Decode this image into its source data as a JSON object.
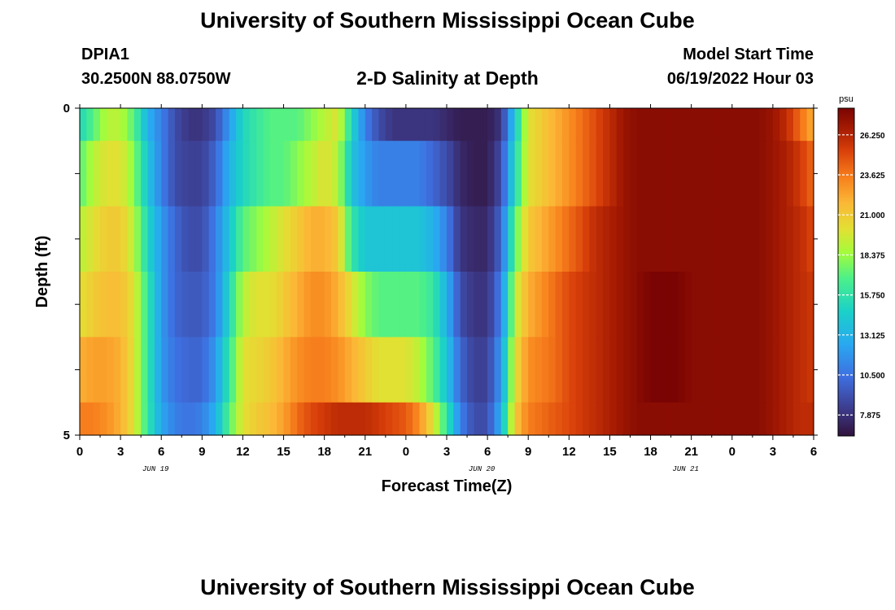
{
  "header": {
    "title": "University of Southern Mississippi Ocean Cube",
    "station_id": "DPIA1",
    "coordinates": "30.2500N  88.0750W",
    "plot_title": "2-D Salinity at Depth",
    "model_start_label": "Model Start Time",
    "model_start_value": "06/19/2022 Hour 03"
  },
  "footer": {
    "title": "University of Southern Mississippi Ocean Cube"
  },
  "chart_data": {
    "type": "heatmap",
    "xlabel": "Forecast Time(Z)",
    "ylabel": "Depth (ft)",
    "x_tick_labels": [
      "0",
      "3",
      "6",
      "9",
      "12",
      "15",
      "18",
      "21",
      "0",
      "3",
      "6",
      "9",
      "12",
      "15",
      "18",
      "21",
      "0",
      "3",
      "6"
    ],
    "date_labels": [
      {
        "label": "JUN 19",
        "at_tick": 2
      },
      {
        "label": "JUN 20",
        "at_tick": 10
      },
      {
        "label": "JUN 21",
        "at_tick": 15
      }
    ],
    "y_tick_labels": [
      "0",
      "5"
    ],
    "ylim": [
      0,
      5
    ],
    "x_range_hours": [
      0,
      54
    ],
    "colorbar": {
      "unit": "psu",
      "range": [
        6.5,
        28.0
      ],
      "tick_labels": [
        "26.250",
        "23.625",
        "21.000",
        "18.375",
        "15.750",
        "13.125",
        "10.500",
        "7.875"
      ],
      "tick_values": [
        26.25,
        23.625,
        21.0,
        18.375,
        15.75,
        13.125,
        10.5,
        7.875
      ]
    },
    "depth_layers_ft": [
      0,
      0.5,
      1.5,
      2.5,
      3.5,
      4.5,
      5.0
    ],
    "time_keyframes_hours": [
      0,
      1,
      2,
      3,
      4,
      5,
      6,
      7,
      8,
      9,
      10,
      11,
      12,
      13,
      14,
      15,
      16,
      17,
      18,
      19,
      20,
      21,
      22,
      23,
      24,
      25,
      26,
      27,
      28,
      29,
      30,
      31,
      32,
      33,
      34,
      35,
      36,
      37,
      38,
      39,
      40,
      41,
      42,
      43,
      44,
      45,
      46,
      47,
      48,
      49,
      50,
      51,
      52,
      53,
      54
    ],
    "salinity_psu_by_layer": [
      [
        15,
        17,
        19,
        19,
        17,
        13,
        11,
        9,
        8,
        8,
        9,
        12,
        15,
        16,
        17,
        17,
        17,
        18,
        19,
        20,
        15,
        11,
        9,
        8,
        8,
        8,
        8,
        7.5,
        7,
        7,
        7,
        8,
        14,
        20,
        21,
        22,
        23,
        24,
        25,
        26,
        27,
        27.5,
        27.5,
        27.5,
        27.5,
        27.5,
        27.5,
        27.5,
        27.5,
        27.5,
        27.5,
        27,
        26,
        24,
        22
      ],
      [
        17,
        19,
        20,
        20,
        18,
        14,
        11,
        9,
        8.5,
        8.5,
        10,
        13,
        15,
        16,
        17,
        17,
        18,
        19,
        20,
        19,
        14,
        12,
        11,
        11,
        11,
        11,
        10,
        9,
        7.5,
        7,
        7,
        9,
        15,
        20,
        21,
        22,
        23,
        24,
        25,
        26,
        27,
        27.5,
        27.5,
        27.5,
        27.5,
        27.5,
        27.5,
        27.5,
        27.5,
        27.5,
        27.5,
        27,
        26.5,
        25.5,
        24
      ],
      [
        19,
        20,
        21,
        21,
        19,
        15,
        12,
        10,
        9,
        9,
        11,
        14,
        17,
        18,
        19,
        20,
        21,
        22,
        22,
        21,
        16,
        14,
        14,
        14,
        14,
        14,
        13,
        11,
        8,
        7.5,
        7.5,
        10,
        17,
        21,
        22,
        23,
        24,
        25,
        26,
        26.5,
        27,
        27.5,
        27.5,
        27.5,
        27.5,
        27.5,
        27.5,
        27.5,
        27.5,
        27.5,
        27.5,
        27,
        26.5,
        26,
        25
      ],
      [
        20,
        21,
        21.5,
        21.5,
        20,
        16,
        12,
        10,
        9.5,
        9.5,
        11,
        15,
        19,
        20,
        20,
        21,
        22,
        23,
        23,
        22,
        20,
        18,
        17,
        17,
        17,
        17,
        16,
        13,
        9,
        8,
        8,
        11,
        19,
        22,
        23,
        24,
        25,
        25.5,
        26,
        26.5,
        27,
        27.5,
        28,
        28,
        28,
        27.5,
        27.5,
        27.5,
        27.5,
        27.5,
        27.5,
        27,
        26.5,
        26,
        25.5
      ],
      [
        22,
        22.5,
        22.5,
        22,
        20,
        16,
        12,
        10.5,
        10,
        10,
        12,
        16,
        20,
        20.5,
        21,
        22,
        23,
        23.5,
        23.5,
        23,
        22,
        21,
        20,
        20,
        20,
        19,
        17,
        14,
        10,
        8.5,
        8.5,
        12,
        20,
        23,
        23.5,
        24,
        25,
        25.5,
        26,
        26.5,
        27,
        27.5,
        28,
        28,
        28,
        27.5,
        27.5,
        27.5,
        27.5,
        27.5,
        27.5,
        27,
        26.5,
        26,
        25.5
      ],
      [
        23.5,
        23.5,
        23,
        22,
        20,
        16,
        12.5,
        11,
        10.5,
        11,
        13,
        17,
        20,
        21,
        21.5,
        22.5,
        24,
        25,
        25.5,
        26,
        26,
        26,
        25.5,
        25,
        24.5,
        23,
        20,
        16,
        11,
        9,
        9,
        13,
        21,
        23.5,
        24,
        24.5,
        25,
        25.5,
        26,
        26.5,
        27,
        27.5,
        27.5,
        27.5,
        27.5,
        27.5,
        27.5,
        27.5,
        27.5,
        27.5,
        27.5,
        27,
        26.5,
        26,
        26
      ]
    ]
  }
}
